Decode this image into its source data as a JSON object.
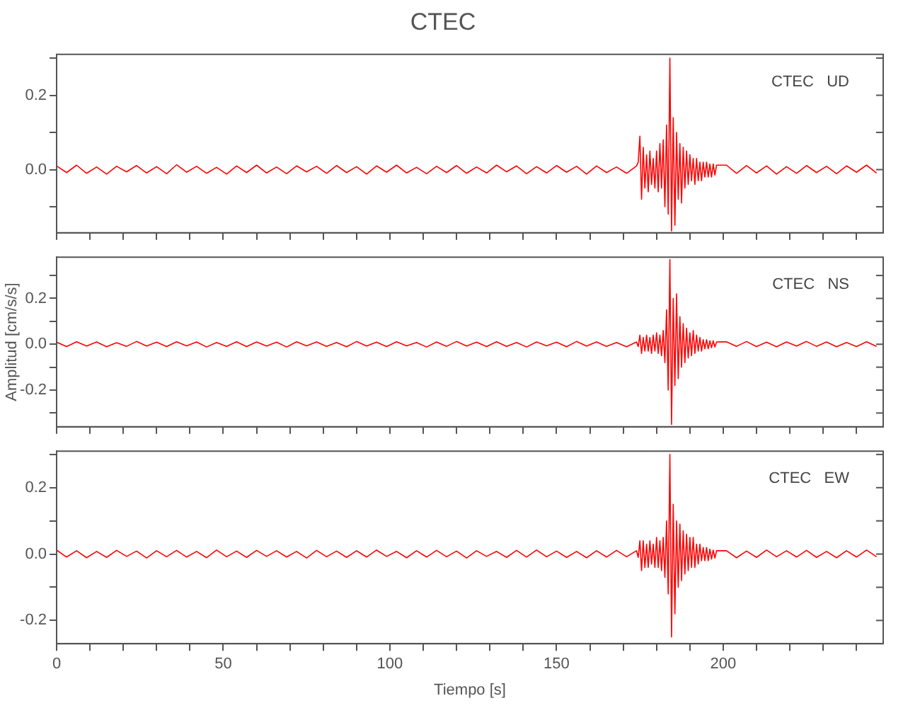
{
  "chart_data": [
    {
      "type": "line",
      "title": "CTEC",
      "tick_labels": "y",
      "annotations": [
        "CTEC   UD"
      ],
      "xlim": [
        0,
        248
      ],
      "xticks": [
        0,
        {
          "value": 10,
          "label": null
        },
        {
          "value": 20,
          "label": null
        },
        {
          "value": 30,
          "label": null
        },
        {
          "value": 40,
          "label": null
        },
        50,
        {
          "value": 60,
          "label": null
        },
        {
          "value": 70,
          "label": null
        },
        {
          "value": 80,
          "label": null
        },
        {
          "value": 90,
          "label": null
        },
        100,
        {
          "value": 110,
          "label": null
        },
        {
          "value": 120,
          "label": null
        },
        {
          "value": 130,
          "label": null
        },
        {
          "value": 140,
          "label": null
        },
        150,
        {
          "value": 160,
          "label": null
        },
        {
          "value": 170,
          "label": null
        },
        {
          "value": 180,
          "label": null
        },
        {
          "value": 190,
          "label": null
        },
        200,
        {
          "value": 210,
          "label": null
        },
        {
          "value": 220,
          "label": null
        },
        {
          "value": 230,
          "label": null
        },
        {
          "value": 240,
          "label": null
        }
      ],
      "ylim": [
        -0.17,
        0.31
      ],
      "yticks": [
        {
          "value": -0.1,
          "label": null
        },
        {
          "value": 0,
          "label": "0.0"
        },
        {
          "value": 0.1,
          "label": null
        },
        {
          "value": 0.2,
          "label": "0.2"
        },
        {
          "value": 0.3,
          "label": null
        }
      ],
      "x": [
        0,
        3,
        6,
        9,
        12,
        15,
        18,
        21,
        24,
        27,
        30,
        33,
        36,
        39,
        42,
        45,
        48,
        51,
        54,
        57,
        60,
        63,
        66,
        69,
        72,
        75,
        78,
        81,
        84,
        87,
        90,
        93,
        96,
        99,
        102,
        105,
        108,
        111,
        114,
        117,
        120,
        123,
        126,
        129,
        132,
        135,
        138,
        141,
        144,
        147,
        150,
        153,
        156,
        159,
        162,
        165,
        168,
        171,
        174,
        174.5,
        175,
        175.5,
        176,
        176.5,
        177,
        177.5,
        178,
        178.5,
        179,
        179.5,
        180,
        180.5,
        181,
        181.5,
        182,
        182.5,
        183,
        183.5,
        184,
        184.5,
        185,
        185.5,
        186,
        186.5,
        187,
        187.5,
        188,
        188.5,
        189,
        189.5,
        190,
        190.5,
        191,
        191.5,
        192,
        192.5,
        193,
        193.5,
        194,
        194.5,
        195,
        195.5,
        196,
        196.5,
        197,
        197.5,
        198,
        201,
        204,
        207,
        210,
        213,
        216,
        219,
        222,
        225,
        228,
        231,
        234,
        237,
        240,
        243,
        246
      ],
      "series": [
        {
          "color": "#ff0000",
          "values": [
            0.01,
            -0.008,
            0.012,
            -0.01,
            0.007,
            -0.012,
            0.009,
            -0.006,
            0.011,
            -0.009,
            0.008,
            -0.011,
            0.013,
            -0.007,
            0.009,
            -0.01,
            0.006,
            -0.012,
            0.01,
            -0.008,
            0.012,
            -0.009,
            0.007,
            -0.011,
            0.01,
            -0.006,
            0.009,
            -0.01,
            0.011,
            -0.008,
            0.008,
            -0.012,
            0.01,
            -0.007,
            0.012,
            -0.009,
            0.006,
            -0.011,
            0.009,
            -0.008,
            0.011,
            -0.01,
            0.007,
            -0.009,
            0.012,
            -0.006,
            0.01,
            -0.011,
            0.008,
            -0.009,
            0.011,
            -0.007,
            0.009,
            -0.012,
            0.01,
            -0.008,
            0.007,
            -0.01,
            0.01,
            0.02,
            0.09,
            -0.08,
            0.06,
            -0.05,
            0.04,
            -0.06,
            0.05,
            -0.04,
            0.03,
            -0.05,
            0.05,
            -0.06,
            0.07,
            -0.05,
            0.08,
            -0.1,
            0.12,
            -0.12,
            0.3,
            -0.165,
            0.14,
            -0.15,
            0.1,
            -0.08,
            0.07,
            -0.09,
            0.06,
            -0.05,
            0.05,
            -0.04,
            0.04,
            -0.03,
            0.03,
            -0.04,
            0.03,
            -0.03,
            0.02,
            -0.03,
            0.02,
            -0.02,
            0.02,
            -0.02,
            0.015,
            -0.02,
            0.015,
            -0.015,
            0.012,
            0.012,
            -0.01,
            0.011,
            -0.009,
            0.01,
            -0.012,
            0.008,
            -0.01,
            0.011,
            -0.008,
            0.009,
            -0.011,
            0.01,
            -0.007,
            0.012,
            -0.009
          ]
        }
      ]
    },
    {
      "type": "line",
      "ylabel": "Amplitud [cm/s/s]",
      "tick_labels": "y",
      "annotations": [
        "CTEC   NS"
      ],
      "xlim": [
        0,
        248
      ],
      "xticks": [
        0,
        {
          "value": 10,
          "label": null
        },
        {
          "value": 20,
          "label": null
        },
        {
          "value": 30,
          "label": null
        },
        {
          "value": 40,
          "label": null
        },
        50,
        {
          "value": 60,
          "label": null
        },
        {
          "value": 70,
          "label": null
        },
        {
          "value": 80,
          "label": null
        },
        {
          "value": 90,
          "label": null
        },
        100,
        {
          "value": 110,
          "label": null
        },
        {
          "value": 120,
          "label": null
        },
        {
          "value": 130,
          "label": null
        },
        {
          "value": 140,
          "label": null
        },
        150,
        {
          "value": 160,
          "label": null
        },
        {
          "value": 170,
          "label": null
        },
        {
          "value": 180,
          "label": null
        },
        {
          "value": 190,
          "label": null
        },
        200,
        {
          "value": 210,
          "label": null
        },
        {
          "value": 220,
          "label": null
        },
        {
          "value": 230,
          "label": null
        },
        {
          "value": 240,
          "label": null
        }
      ],
      "ylim": [
        -0.36,
        0.38
      ],
      "yticks": [
        {
          "value": -0.3,
          "label": null
        },
        {
          "value": -0.2,
          "label": "-0.2"
        },
        {
          "value": -0.1,
          "label": null
        },
        {
          "value": 0,
          "label": "0.0"
        },
        {
          "value": 0.1,
          "label": null
        },
        {
          "value": 0.2,
          "label": "0.2"
        },
        {
          "value": 0.3,
          "label": null
        }
      ],
      "x": [
        0,
        3,
        6,
        9,
        12,
        15,
        18,
        21,
        24,
        27,
        30,
        33,
        36,
        39,
        42,
        45,
        48,
        51,
        54,
        57,
        60,
        63,
        66,
        69,
        72,
        75,
        78,
        81,
        84,
        87,
        90,
        93,
        96,
        99,
        102,
        105,
        108,
        111,
        114,
        117,
        120,
        123,
        126,
        129,
        132,
        135,
        138,
        141,
        144,
        147,
        150,
        153,
        156,
        159,
        162,
        165,
        168,
        171,
        174,
        174.5,
        175,
        175.5,
        176,
        176.5,
        177,
        177.5,
        178,
        178.5,
        179,
        179.5,
        180,
        180.5,
        181,
        181.5,
        182,
        182.5,
        183,
        183.5,
        184,
        184.5,
        185,
        185.5,
        186,
        186.5,
        187,
        187.5,
        188,
        188.5,
        189,
        189.5,
        190,
        190.5,
        191,
        191.5,
        192,
        192.5,
        193,
        193.5,
        194,
        194.5,
        195,
        195.5,
        196,
        196.5,
        197,
        197.5,
        198,
        201,
        204,
        207,
        210,
        213,
        216,
        219,
        222,
        225,
        228,
        231,
        234,
        237,
        240,
        243,
        246
      ],
      "series": [
        {
          "color": "#ff0000",
          "values": [
            0.009,
            -0.01,
            0.011,
            -0.008,
            0.01,
            -0.011,
            0.007,
            -0.009,
            0.012,
            -0.008,
            0.009,
            -0.01,
            0.011,
            -0.007,
            0.01,
            -0.012,
            0.008,
            -0.009,
            0.011,
            -0.01,
            0.01,
            -0.008,
            0.009,
            -0.012,
            0.011,
            -0.007,
            0.01,
            -0.009,
            0.008,
            -0.011,
            0.012,
            -0.008,
            0.009,
            -0.01,
            0.011,
            -0.007,
            0.008,
            -0.012,
            0.01,
            -0.009,
            0.012,
            -0.008,
            0.009,
            -0.01,
            0.011,
            -0.009,
            0.008,
            -0.012,
            0.01,
            -0.007,
            0.009,
            -0.011,
            0.012,
            -0.008,
            0.01,
            -0.009,
            0.008,
            -0.011,
            0.01,
            -0.01,
            0.04,
            -0.04,
            0.03,
            -0.03,
            0.04,
            -0.03,
            0.03,
            -0.04,
            0.04,
            -0.03,
            0.05,
            -0.04,
            0.04,
            -0.05,
            0.06,
            -0.08,
            0.15,
            -0.2,
            0.37,
            -0.35,
            0.2,
            -0.18,
            0.22,
            -0.15,
            0.12,
            -0.1,
            0.09,
            -0.08,
            0.07,
            -0.06,
            0.05,
            -0.05,
            0.06,
            -0.04,
            0.04,
            -0.03,
            0.03,
            -0.03,
            0.02,
            -0.02,
            0.02,
            -0.02,
            0.015,
            -0.015,
            0.015,
            -0.012,
            0.01,
            0.011,
            -0.009,
            0.012,
            -0.01,
            0.009,
            -0.011,
            0.01,
            -0.008,
            0.012,
            -0.009,
            0.01,
            -0.011,
            0.008,
            -0.01,
            0.011,
            -0.009
          ]
        }
      ]
    },
    {
      "type": "line",
      "xlabel": "Tiempo [s]",
      "annotations": [
        "CTEC   EW"
      ],
      "xlim": [
        0,
        248
      ],
      "xticks": [
        0,
        {
          "value": 10,
          "label": null
        },
        {
          "value": 20,
          "label": null
        },
        {
          "value": 30,
          "label": null
        },
        {
          "value": 40,
          "label": null
        },
        50,
        {
          "value": 60,
          "label": null
        },
        {
          "value": 70,
          "label": null
        },
        {
          "value": 80,
          "label": null
        },
        {
          "value": 90,
          "label": null
        },
        100,
        {
          "value": 110,
          "label": null
        },
        {
          "value": 120,
          "label": null
        },
        {
          "value": 130,
          "label": null
        },
        {
          "value": 140,
          "label": null
        },
        150,
        {
          "value": 160,
          "label": null
        },
        {
          "value": 170,
          "label": null
        },
        {
          "value": 180,
          "label": null
        },
        {
          "value": 190,
          "label": null
        },
        200,
        {
          "value": 210,
          "label": null
        },
        {
          "value": 220,
          "label": null
        },
        {
          "value": 230,
          "label": null
        },
        {
          "value": 240,
          "label": null
        }
      ],
      "ylim": [
        -0.27,
        0.31
      ],
      "yticks": [
        {
          "value": -0.2,
          "label": "-0.2"
        },
        {
          "value": -0.1,
          "label": null
        },
        {
          "value": 0,
          "label": "0.0"
        },
        {
          "value": 0.1,
          "label": null
        },
        {
          "value": 0.2,
          "label": "0.2"
        },
        {
          "value": 0.3,
          "label": null
        }
      ],
      "x": [
        0,
        3,
        6,
        9,
        12,
        15,
        18,
        21,
        24,
        27,
        30,
        33,
        36,
        39,
        42,
        45,
        48,
        51,
        54,
        57,
        60,
        63,
        66,
        69,
        72,
        75,
        78,
        81,
        84,
        87,
        90,
        93,
        96,
        99,
        102,
        105,
        108,
        111,
        114,
        117,
        120,
        123,
        126,
        129,
        132,
        135,
        138,
        141,
        144,
        147,
        150,
        153,
        156,
        159,
        162,
        165,
        168,
        171,
        174,
        174.5,
        175,
        175.5,
        176,
        176.5,
        177,
        177.5,
        178,
        178.5,
        179,
        179.5,
        180,
        180.5,
        181,
        181.5,
        182,
        182.5,
        183,
        183.5,
        184,
        184.5,
        185,
        185.5,
        186,
        186.5,
        187,
        187.5,
        188,
        188.5,
        189,
        189.5,
        190,
        190.5,
        191,
        191.5,
        192,
        192.5,
        193,
        193.5,
        194,
        194.5,
        195,
        195.5,
        196,
        196.5,
        197,
        197.5,
        198,
        201,
        204,
        207,
        210,
        213,
        216,
        219,
        222,
        225,
        228,
        231,
        234,
        237,
        240,
        243,
        246
      ],
      "series": [
        {
          "color": "#ff0000",
          "values": [
            0.012,
            -0.009,
            0.01,
            -0.011,
            0.008,
            -0.01,
            0.011,
            -0.007,
            0.009,
            -0.012,
            0.01,
            -0.008,
            0.011,
            -0.009,
            0.008,
            -0.011,
            0.012,
            -0.008,
            0.009,
            -0.01,
            0.011,
            -0.007,
            0.01,
            -0.009,
            0.008,
            -0.012,
            0.011,
            -0.008,
            0.009,
            -0.01,
            0.01,
            -0.009,
            0.012,
            -0.007,
            0.008,
            -0.011,
            0.01,
            -0.009,
            0.011,
            -0.008,
            0.009,
            -0.012,
            0.01,
            -0.007,
            0.008,
            -0.01,
            0.011,
            -0.009,
            0.012,
            -0.008,
            0.009,
            -0.01,
            0.008,
            -0.011,
            0.01,
            -0.009,
            0.011,
            -0.008,
            0.01,
            -0.01,
            0.04,
            -0.05,
            0.04,
            -0.04,
            0.03,
            -0.04,
            0.04,
            -0.03,
            0.03,
            -0.04,
            0.05,
            -0.04,
            0.04,
            -0.05,
            0.05,
            -0.07,
            0.1,
            -0.12,
            0.3,
            -0.25,
            0.15,
            -0.18,
            0.1,
            -0.1,
            0.09,
            -0.08,
            0.07,
            -0.06,
            0.06,
            -0.05,
            0.05,
            -0.04,
            0.05,
            -0.04,
            0.03,
            -0.03,
            0.03,
            -0.02,
            0.02,
            -0.02,
            0.02,
            -0.02,
            0.015,
            -0.015,
            0.012,
            -0.012,
            0.01,
            0.01,
            -0.011,
            0.009,
            -0.01,
            0.012,
            -0.008,
            0.01,
            -0.009,
            0.011,
            -0.01,
            0.008,
            -0.011,
            0.01,
            -0.009,
            0.012,
            -0.008
          ]
        }
      ]
    }
  ]
}
